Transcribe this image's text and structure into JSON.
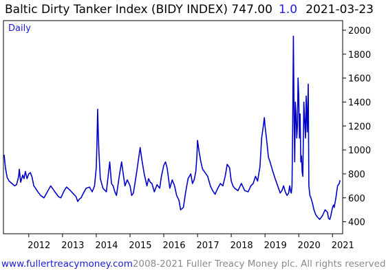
{
  "header": {
    "title": "Baltic Dirty Tanker Index (BIDY INDEX) 747.00",
    "change": "1.0",
    "date": "2021-03-23"
  },
  "footer": {
    "url": "www.fullertreacymoney.com",
    "copyright": "2008-2021 Fuller Treacy Money plc. All rights reserved"
  },
  "colors": {
    "line": "#0000c8",
    "accent": "#1a1ad6"
  },
  "chart_data": {
    "type": "line",
    "period_label": "Daily",
    "xlim": [
      2011.25,
      2021.3
    ],
    "ylim": [
      300,
      2080
    ],
    "y_ticks": [
      400,
      600,
      800,
      1000,
      1200,
      1400,
      1600,
      1800,
      2000
    ],
    "x_ticks": [
      {
        "label": "2012",
        "value": 2012.0
      },
      {
        "label": "2013",
        "value": 2013.0
      },
      {
        "label": "2014",
        "value": 2014.0
      },
      {
        "label": "2015",
        "value": 2015.0
      },
      {
        "label": "2016",
        "value": 2016.0
      },
      {
        "label": "2017",
        "value": 2017.0
      },
      {
        "label": "2018",
        "value": 2018.0
      },
      {
        "label": "2019",
        "value": 2019.0
      },
      {
        "label": "2020",
        "value": 2020.0
      },
      {
        "label": "2021",
        "value": 2021.0
      }
    ],
    "grid": false,
    "series": [
      {
        "x": [
          2011.27,
          2011.31,
          2011.36,
          2011.42,
          2011.5,
          2011.58,
          2011.64,
          2011.7,
          2011.72,
          2011.76,
          2011.82,
          2011.86,
          2011.9,
          2011.95,
          2012.0,
          2012.05,
          2012.1,
          2012.15,
          2012.2,
          2012.27,
          2012.35,
          2012.45,
          2012.55,
          2012.65,
          2012.75,
          2012.8,
          2012.88,
          2012.95,
          2013.05,
          2013.12,
          2013.2,
          2013.3,
          2013.4,
          2013.45,
          2013.5,
          2013.55,
          2013.62,
          2013.7,
          2013.8,
          2013.88,
          2013.95,
          2014.0,
          2014.02,
          2014.04,
          2014.06,
          2014.08,
          2014.12,
          2014.2,
          2014.3,
          2014.4,
          2014.45,
          2014.5,
          2014.55,
          2014.6,
          2014.68,
          2014.75,
          2014.8,
          2014.85,
          2014.92,
          2015.0,
          2015.05,
          2015.1,
          2015.2,
          2015.3,
          2015.35,
          2015.42,
          2015.5,
          2015.55,
          2015.6,
          2015.65,
          2015.72,
          2015.8,
          2015.88,
          2015.93,
          2016.0,
          2016.05,
          2016.1,
          2016.18,
          2016.25,
          2016.32,
          2016.38,
          2016.45,
          2016.5,
          2016.58,
          2016.65,
          2016.72,
          2016.8,
          2016.85,
          2016.9,
          2016.95,
          2016.98,
          2017.0,
          2017.05,
          2017.1,
          2017.15,
          2017.2,
          2017.3,
          2017.38,
          2017.45,
          2017.52,
          2017.6,
          2017.68,
          2017.75,
          2017.82,
          2017.88,
          2017.95,
          2018.0,
          2018.05,
          2018.1,
          2018.2,
          2018.3,
          2018.4,
          2018.5,
          2018.58,
          2018.65,
          2018.72,
          2018.78,
          2018.85,
          2018.9,
          2018.95,
          2018.98,
          2019.0,
          2019.05,
          2019.1,
          2019.15,
          2019.22,
          2019.3,
          2019.4,
          2019.45,
          2019.5,
          2019.55,
          2019.6,
          2019.65,
          2019.7,
          2019.73,
          2019.76,
          2019.78,
          2019.8,
          2019.82,
          2019.84,
          2019.86,
          2019.88,
          2019.9,
          2019.92,
          2019.94,
          2019.96,
          2019.98,
          2020.0,
          2020.02,
          2020.04,
          2020.06,
          2020.08,
          2020.1,
          2020.12,
          2020.15,
          2020.18,
          2020.2,
          2020.22,
          2020.25,
          2020.28,
          2020.3,
          2020.33,
          2020.36,
          2020.4,
          2020.45,
          2020.5,
          2020.55,
          2020.62,
          2020.7,
          2020.78,
          2020.85,
          2020.88,
          2020.92,
          2020.95,
          2021.0,
          2021.03,
          2021.05,
          2021.1,
          2021.15,
          2021.2,
          2021.22
        ],
        "y": [
          960,
          850,
          770,
          740,
          720,
          700,
          710,
          780,
          840,
          730,
          790,
          760,
          820,
          760,
          800,
          810,
          770,
          700,
          680,
          650,
          620,
          600,
          650,
          700,
          660,
          640,
          610,
          600,
          660,
          690,
          670,
          640,
          610,
          570,
          590,
          600,
          640,
          680,
          690,
          650,
          700,
          850,
          1050,
          1340,
          1150,
          980,
          760,
          680,
          650,
          900,
          720,
          700,
          650,
          620,
          780,
          900,
          800,
          700,
          750,
          700,
          620,
          640,
          820,
          1020,
          920,
          800,
          700,
          760,
          730,
          720,
          650,
          710,
          680,
          780,
          870,
          900,
          850,
          680,
          750,
          700,
          620,
          580,
          500,
          520,
          650,
          760,
          800,
          720,
          750,
          820,
          940,
          1080,
          980,
          900,
          840,
          820,
          780,
          700,
          660,
          630,
          680,
          720,
          700,
          780,
          880,
          850,
          740,
          700,
          680,
          660,
          720,
          660,
          650,
          700,
          720,
          780,
          740,
          860,
          1100,
          1200,
          1270,
          1200,
          1080,
          940,
          900,
          830,
          760,
          680,
          640,
          660,
          700,
          650,
          620,
          640,
          700,
          650,
          640,
          700,
          1200,
          1950,
          1300,
          900,
          1400,
          1300,
          1100,
          1200,
          1600,
          1450,
          1100,
          1300,
          900,
          950,
          820,
          780,
          1400,
          1200,
          1100,
          1450,
          1150,
          1550,
          700,
          620,
          600,
          560,
          500,
          460,
          440,
          420,
          450,
          500,
          480,
          430,
          420,
          450,
          520,
          540,
          520,
          600,
          700,
          720,
          747
        ]
      }
    ]
  }
}
